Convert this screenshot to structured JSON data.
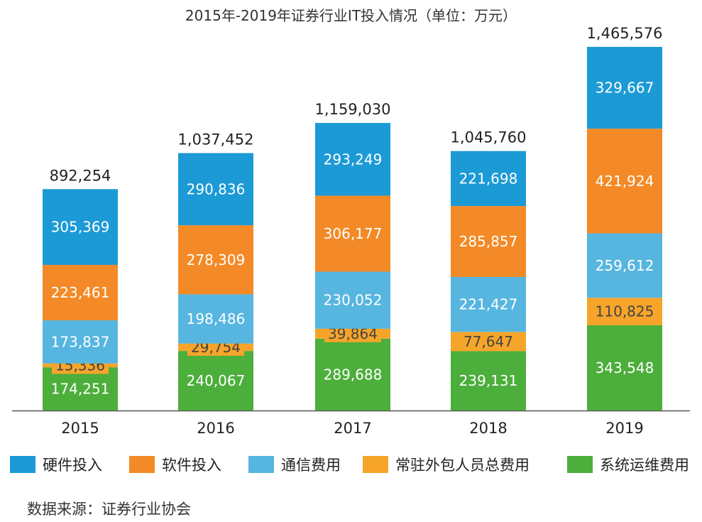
{
  "chart_data": {
    "type": "bar",
    "stacked": true,
    "title": "2015年-2019年证券行业IT投入情况（单位：万元）",
    "categories": [
      "2015",
      "2016",
      "2017",
      "2018",
      "2019"
    ],
    "series": [
      {
        "name": "系统运维费用",
        "color": "#4cae3b",
        "values": [
          174251,
          240067,
          289688,
          239131,
          343548
        ],
        "labels": [
          "174,251",
          "240,067",
          "289,688",
          "239,131",
          "343,548"
        ]
      },
      {
        "name": "常驻外包人员总费用",
        "color": "#f6a52a",
        "values": [
          15336,
          29754,
          39864,
          77647,
          110825
        ],
        "labels": [
          "15,336",
          "29,754",
          "39,864",
          "77,647",
          "110,825"
        ]
      },
      {
        "name": "通信费用",
        "color": "#56b6e0",
        "values": [
          173837,
          198486,
          230052,
          221427,
          259612
        ],
        "labels": [
          "173,837",
          "198,486",
          "230,052",
          "221,427",
          "259,612"
        ]
      },
      {
        "name": "软件投入",
        "color": "#f38a27",
        "values": [
          223461,
          278309,
          306177,
          285857,
          421924
        ],
        "labels": [
          "223,461",
          "278,309",
          "306,177",
          "285,857",
          "421,924"
        ]
      },
      {
        "name": "硬件投入",
        "color": "#1c9ad6",
        "values": [
          305369,
          290836,
          293249,
          221698,
          329667
        ],
        "labels": [
          "305,369",
          "290,836",
          "293,249",
          "221,698",
          "329,667"
        ]
      }
    ],
    "totals": [
      892254,
      1037452,
      1159030,
      1045760,
      1465576
    ],
    "total_labels": [
      "892,254",
      "1,037,452",
      "1,159,030",
      "1,045,760",
      "1,465,576"
    ],
    "legend_order": [
      "硬件投入",
      "软件投入",
      "通信费用",
      "常驻外包人员总费用",
      "系统运维费用"
    ],
    "legend_position": "bottom",
    "ylim": [
      0,
      1465576
    ],
    "grid": false
  },
  "source_text": "数据来源：证券行业协会"
}
